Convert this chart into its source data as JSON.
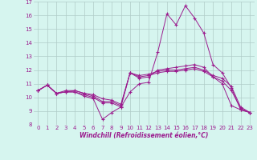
{
  "xlabel": "Windchill (Refroidissement éolien,°C)",
  "x": [
    0,
    1,
    2,
    3,
    4,
    5,
    6,
    7,
    8,
    9,
    10,
    11,
    12,
    13,
    14,
    15,
    16,
    17,
    18,
    19,
    20,
    21,
    22,
    23
  ],
  "lines": [
    [
      10.5,
      10.9,
      10.3,
      10.4,
      10.4,
      10.1,
      9.9,
      8.4,
      8.9,
      9.3,
      10.4,
      11.0,
      11.1,
      13.3,
      16.1,
      15.3,
      16.7,
      15.8,
      14.7,
      12.4,
      11.8,
      10.7,
      9.1,
      8.9
    ],
    [
      10.5,
      10.9,
      10.3,
      10.4,
      10.4,
      10.2,
      10.0,
      9.6,
      9.6,
      9.3,
      11.8,
      11.4,
      11.5,
      12.0,
      12.1,
      12.2,
      12.3,
      12.4,
      12.2,
      11.5,
      11.0,
      9.4,
      9.1,
      8.9
    ],
    [
      10.5,
      10.9,
      10.3,
      10.4,
      10.5,
      10.3,
      10.1,
      9.7,
      9.7,
      9.4,
      11.8,
      11.5,
      11.6,
      11.8,
      11.9,
      11.9,
      12.0,
      12.1,
      11.9,
      11.5,
      11.2,
      10.5,
      9.2,
      8.9
    ],
    [
      10.5,
      10.9,
      10.3,
      10.5,
      10.5,
      10.3,
      10.2,
      9.9,
      9.8,
      9.5,
      11.8,
      11.6,
      11.7,
      11.9,
      12.0,
      12.0,
      12.1,
      12.2,
      12.0,
      11.6,
      11.4,
      10.8,
      9.3,
      8.9
    ]
  ],
  "line_color": "#9b1c8e",
  "bg_color": "#d6f5ef",
  "grid_color": "#b0ccc8",
  "ylim": [
    8,
    17
  ],
  "xlim_min": -0.5,
  "xlim_max": 23.5,
  "yticks": [
    8,
    9,
    10,
    11,
    12,
    13,
    14,
    15,
    16,
    17
  ],
  "xticks": [
    0,
    1,
    2,
    3,
    4,
    5,
    6,
    7,
    8,
    9,
    10,
    11,
    12,
    13,
    14,
    15,
    16,
    17,
    18,
    19,
    20,
    21,
    22,
    23
  ],
  "xlabel_fontsize": 5.5,
  "tick_fontsize": 5.0
}
